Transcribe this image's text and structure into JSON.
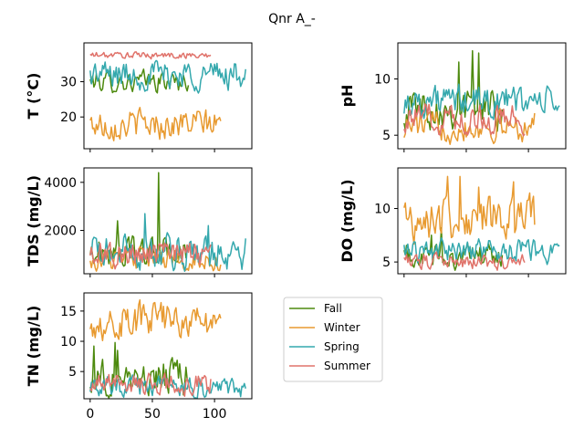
{
  "chart_data": {
    "type": "line",
    "title": "Qnr A_-",
    "colors": {
      "Fall": "#4d8a0e",
      "Winter": "#e89a30",
      "Spring": "#34a8ad",
      "Summer": "#e0736b"
    },
    "legend": {
      "placement": "lower-middle",
      "entries": [
        "Fall",
        "Winter",
        "Spring",
        "Summer"
      ]
    },
    "xlim": [
      -5,
      130
    ],
    "xticks": [
      "0",
      "50",
      "100"
    ],
    "x_series_lengths": {
      "Fall": 80,
      "Winter": 106,
      "Spring": 126,
      "Summer": 98
    },
    "panels": [
      {
        "id": "T",
        "ylabel": "T  (°C)",
        "ylim": [
          11,
          41
        ],
        "yticks": [
          20,
          30
        ],
        "grid": false,
        "series": [
          {
            "name": "Fall",
            "base": 30,
            "amp": 2.5,
            "spikes": []
          },
          {
            "name": "Winter",
            "base": 18,
            "amp": 3.5,
            "spikes": []
          },
          {
            "name": "Spring",
            "base": 32,
            "amp": 3.5,
            "spikes": []
          },
          {
            "name": "Summer",
            "base": 37.5,
            "amp": 0.8,
            "spikes": []
          }
        ]
      },
      {
        "id": "pH",
        "ylabel": "pH",
        "ylim": [
          3.8,
          13.2
        ],
        "yticks": [
          5,
          10
        ],
        "grid": false,
        "series": [
          {
            "name": "Fall",
            "base": 7.5,
            "amp": 1.5,
            "spikes": [
              [
                55,
                12.5
              ],
              [
                60,
                12.3
              ],
              [
                44,
                11.5
              ]
            ]
          },
          {
            "name": "Winter",
            "base": 5.8,
            "amp": 1.1,
            "spikes": []
          },
          {
            "name": "Spring",
            "base": 8.0,
            "amp": 1.2,
            "spikes": []
          },
          {
            "name": "Summer",
            "base": 6.5,
            "amp": 1.1,
            "spikes": []
          }
        ]
      },
      {
        "id": "TDS",
        "ylabel": "TDS (mg/L)",
        "ylim": [
          200,
          4600
        ],
        "yticks": [
          2000,
          4000
        ],
        "grid": false,
        "series": [
          {
            "name": "Fall",
            "base": 1100,
            "amp": 500,
            "spikes": [
              [
                55,
                4400
              ],
              [
                22,
                2400
              ]
            ]
          },
          {
            "name": "Winter",
            "base": 800,
            "amp": 400,
            "spikes": []
          },
          {
            "name": "Spring",
            "base": 1100,
            "amp": 600,
            "spikes": [
              [
                44,
                2700
              ],
              [
                95,
                2200
              ]
            ]
          },
          {
            "name": "Summer",
            "base": 1000,
            "amp": 500,
            "spikes": []
          }
        ]
      },
      {
        "id": "DO",
        "ylabel": "DO (mg/L)",
        "ylim": [
          3.9,
          13.8
        ],
        "yticks": [
          5,
          10
        ],
        "grid": false,
        "series": [
          {
            "name": "Fall",
            "base": 5.5,
            "amp": 1.0,
            "spikes": [
              [
                30,
                8.2
              ],
              [
                22,
                7.5
              ]
            ]
          },
          {
            "name": "Winter",
            "base": 9.0,
            "amp": 1.7,
            "spikes": [
              [
                35,
                13.0
              ],
              [
                45,
                13.0
              ],
              [
                60,
                12.0
              ],
              [
                88,
                12.5
              ]
            ]
          },
          {
            "name": "Spring",
            "base": 6.0,
            "amp": 0.9,
            "spikes": []
          },
          {
            "name": "Summer",
            "base": 5.0,
            "amp": 0.6,
            "spikes": []
          }
        ]
      },
      {
        "id": "TN",
        "ylabel": "TN (mg/L)",
        "ylim": [
          0.5,
          18
        ],
        "yticks": [
          5,
          10,
          15
        ],
        "grid": false,
        "series": [
          {
            "name": "Fall",
            "base": 4,
            "amp": 2.5,
            "spikes": [
              [
                3,
                9.2
              ],
              [
                20,
                9.8
              ],
              [
                22,
                8.5
              ]
            ]
          },
          {
            "name": "Winter",
            "base": 13.5,
            "amp": 2.5,
            "spikes": []
          },
          {
            "name": "Spring",
            "base": 2.5,
            "amp": 1.5,
            "spikes": []
          },
          {
            "name": "Summer",
            "base": 3,
            "amp": 1.5,
            "spikes": []
          }
        ]
      }
    ]
  }
}
